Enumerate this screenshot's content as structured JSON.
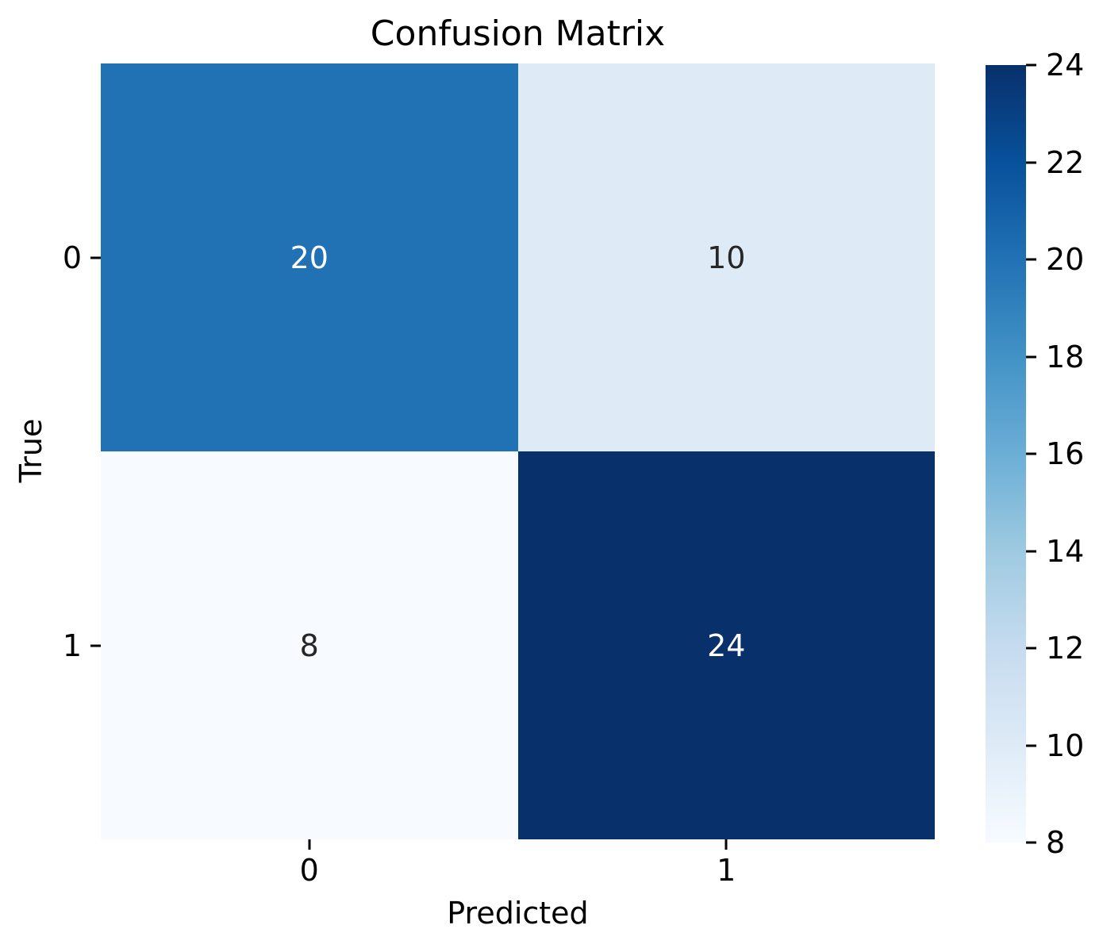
{
  "chart_data": {
    "type": "heatmap",
    "title": "Confusion Matrix",
    "xlabel": "Predicted",
    "ylabel": "True",
    "x_tick_labels": [
      "0",
      "1"
    ],
    "y_tick_labels": [
      "0",
      "1"
    ],
    "matrix": [
      [
        20,
        10
      ],
      [
        8,
        24
      ]
    ],
    "vmin": 8,
    "vmax": 24,
    "colormap": "Blues",
    "grid": false,
    "legend_position": "colorbar-right",
    "cells": [
      {
        "row": 0,
        "col": 0,
        "value": "20",
        "bg": "#2171b5",
        "fg": "#ffffff"
      },
      {
        "row": 0,
        "col": 1,
        "value": "10",
        "bg": "#deebf7",
        "fg": "#262626"
      },
      {
        "row": 1,
        "col": 0,
        "value": "8",
        "bg": "#f7fbff",
        "fg": "#262626"
      },
      {
        "row": 1,
        "col": 1,
        "value": "24",
        "bg": "#08306b",
        "fg": "#ffffff"
      }
    ],
    "colorbar_ticks": [
      "24",
      "22",
      "20",
      "18",
      "16",
      "14",
      "12",
      "10",
      "8"
    ],
    "colorbar_gradient_bottom_to_top": [
      "#f7fbff",
      "#deebf7",
      "#c6dbef",
      "#9ecae1",
      "#6baed6",
      "#4292c6",
      "#2171b5",
      "#08519c",
      "#08306b"
    ],
    "text_color": "#000000"
  }
}
